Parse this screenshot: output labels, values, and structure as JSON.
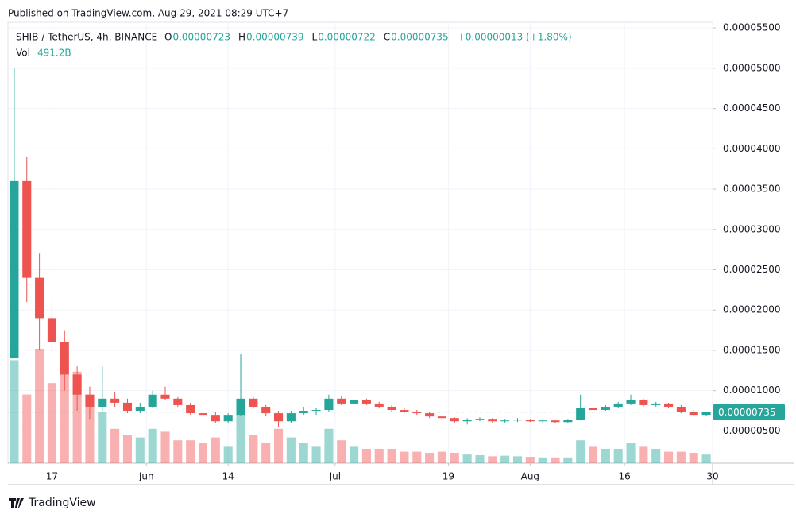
{
  "header": {
    "published": "Published on TradingView.com, Aug 29, 2021 08:29 UTC+7",
    "symbol": "SHIB / TetherUS, 4h, BINANCE",
    "ohlc": [
      {
        "key": "O",
        "value": "0.00000723"
      },
      {
        "key": "H",
        "value": "0.00000739"
      },
      {
        "key": "L",
        "value": "0.00000722"
      },
      {
        "key": "C",
        "value": "0.00000735"
      },
      {
        "key": "",
        "value": "+0.00000013 (+1.80%)"
      }
    ],
    "vol_key": "Vol",
    "vol_value": "491.2B"
  },
  "footer": {
    "brand": "TradingView"
  },
  "chart_data": {
    "type": "candlestick",
    "x": [
      "2021-05-10",
      "2021-05-12",
      "2021-05-14",
      "2021-05-16",
      "2021-05-18",
      "2021-05-20",
      "2021-05-22",
      "2021-05-24",
      "2021-05-26",
      "2021-05-28",
      "2021-05-30",
      "2021-06-01",
      "2021-06-03",
      "2021-06-05",
      "2021-06-07",
      "2021-06-09",
      "2021-06-11",
      "2021-06-13",
      "2021-06-15",
      "2021-06-17",
      "2021-06-19",
      "2021-06-21",
      "2021-06-23",
      "2021-06-25",
      "2021-06-27",
      "2021-06-29",
      "2021-07-01",
      "2021-07-03",
      "2021-07-05",
      "2021-07-07",
      "2021-07-09",
      "2021-07-11",
      "2021-07-13",
      "2021-07-15",
      "2021-07-17",
      "2021-07-19",
      "2021-07-21",
      "2021-07-23",
      "2021-07-25",
      "2021-07-27",
      "2021-07-29",
      "2021-07-31",
      "2021-08-02",
      "2021-08-04",
      "2021-08-06",
      "2021-08-08",
      "2021-08-10",
      "2021-08-12",
      "2021-08-14",
      "2021-08-16",
      "2021-08-18",
      "2021-08-20",
      "2021-08-22",
      "2021-08-24",
      "2021-08-26",
      "2021-08-28"
    ],
    "open": [
      1.4e-05,
      3.6e-05,
      2.4e-05,
      1.9e-05,
      1.6e-05,
      1.2e-05,
      9.5e-06,
      8e-06,
      9e-06,
      8.5e-06,
      7.5e-06,
      8e-06,
      9.5e-06,
      9e-06,
      8.2e-06,
      7.2e-06,
      7e-06,
      6.2e-06,
      7e-06,
      9e-06,
      8e-06,
      7.2e-06,
      6.2e-06,
      7.2e-06,
      7.5e-06,
      7.6e-06,
      9e-06,
      8.4e-06,
      8.8e-06,
      8.4e-06,
      8e-06,
      7.6e-06,
      7.4e-06,
      7.2e-06,
      6.8e-06,
      6.6e-06,
      6.2e-06,
      6.4e-06,
      6.5e-06,
      6.2e-06,
      6.3e-06,
      6.4e-06,
      6.2e-06,
      6.3e-06,
      6.1e-06,
      6.4e-06,
      7.8e-06,
      7.6e-06,
      8e-06,
      8.4e-06,
      8.8e-06,
      8.2e-06,
      8.4e-06,
      8e-06,
      7.4e-06,
      7e-06
    ],
    "high": [
      5e-05,
      3.9e-05,
      2.7e-05,
      2.1e-05,
      1.75e-05,
      1.3e-05,
      1.05e-05,
      1.3e-05,
      9.8e-06,
      9e-06,
      8.5e-06,
      1e-05,
      1.05e-05,
      9.2e-06,
      8.5e-06,
      7.8e-06,
      7.4e-06,
      7.2e-06,
      1.45e-05,
      9.2e-06,
      8.2e-06,
      7.5e-06,
      7.5e-06,
      8e-06,
      7.8e-06,
      9.5e-06,
      9.3e-06,
      9e-06,
      9e-06,
      8.6e-06,
      8.2e-06,
      7.8e-06,
      7.6e-06,
      7.3e-06,
      7e-06,
      6.7e-06,
      6.6e-06,
      6.7e-06,
      6.6e-06,
      6.5e-06,
      6.6e-06,
      6.5e-06,
      6.4e-06,
      6.4e-06,
      6.5e-06,
      9.5e-06,
      8.2e-06,
      8.2e-06,
      8.6e-06,
      9.5e-06,
      9e-06,
      8.6e-06,
      8.5e-06,
      8.2e-06,
      7.6e-06,
      7.4e-06
    ],
    "low": [
      1.4e-05,
      2.1e-05,
      1.5e-05,
      1.5e-05,
      1e-05,
      7.5e-06,
      6.5e-06,
      7.5e-06,
      8e-06,
      7.2e-06,
      7.2e-06,
      7.8e-06,
      8.8e-06,
      8e-06,
      7e-06,
      6.5e-06,
      6e-06,
      6e-06,
      6.8e-06,
      7.8e-06,
      6.8e-06,
      5.5e-06,
      6e-06,
      7e-06,
      7e-06,
      7.4e-06,
      8.2e-06,
      8.2e-06,
      8.2e-06,
      7.8e-06,
      7.4e-06,
      7.2e-06,
      7e-06,
      6.6e-06,
      6.4e-06,
      6e-06,
      5.8e-06,
      6.2e-06,
      6e-06,
      6e-06,
      6.1e-06,
      6.1e-06,
      6e-06,
      6e-06,
      6e-06,
      6.3e-06,
      7.4e-06,
      7.5e-06,
      7.8e-06,
      8.2e-06,
      8e-06,
      8e-06,
      7.8e-06,
      7.2e-06,
      6.8e-06,
      6.9e-06
    ],
    "close": [
      3.6e-05,
      2.4e-05,
      1.9e-05,
      1.6e-05,
      1.2e-05,
      9.5e-06,
      8e-06,
      9e-06,
      8.5e-06,
      7.5e-06,
      8e-06,
      9.5e-06,
      9e-06,
      8.2e-06,
      7.2e-06,
      7e-06,
      6.2e-06,
      7e-06,
      9e-06,
      8e-06,
      7.2e-06,
      6.2e-06,
      7.2e-06,
      7.5e-06,
      7.6e-06,
      9e-06,
      8.4e-06,
      8.8e-06,
      8.4e-06,
      8e-06,
      7.6e-06,
      7.4e-06,
      7.2e-06,
      6.8e-06,
      6.6e-06,
      6.2e-06,
      6.4e-06,
      6.5e-06,
      6.2e-06,
      6.3e-06,
      6.4e-06,
      6.2e-06,
      6.3e-06,
      6.1e-06,
      6.4e-06,
      7.8e-06,
      7.6e-06,
      8e-06,
      8.4e-06,
      8.8e-06,
      8.2e-06,
      8.4e-06,
      8e-06,
      7.4e-06,
      7e-06,
      7.35e-06
    ],
    "volume": [
      18000,
      12000,
      20000,
      14000,
      19000,
      16000,
      12000,
      9000,
      6000,
      5000,
      4500,
      6000,
      5500,
      4000,
      4000,
      3500,
      4500,
      3000,
      9000,
      5000,
      3500,
      6000,
      4500,
      3500,
      3000,
      6000,
      4000,
      3000,
      2500,
      2500,
      2500,
      2000,
      2000,
      1800,
      2000,
      1800,
      1500,
      1400,
      1200,
      1300,
      1200,
      1100,
      1000,
      1000,
      1000,
      4000,
      3000,
      2500,
      2500,
      3500,
      3000,
      2500,
      2000,
      2000,
      1800,
      1500
    ],
    "up_color": "#26a69a",
    "down_color": "#ef5350",
    "xlim": [
      "2021-05-10",
      "2021-08-30"
    ],
    "xticks": [
      {
        "value": "2021-05-17",
        "label": "17"
      },
      {
        "value": "2021-06-01",
        "label": "Jun"
      },
      {
        "value": "2021-06-14",
        "label": "14"
      },
      {
        "value": "2021-07-01",
        "label": "Jul"
      },
      {
        "value": "2021-07-19",
        "label": "19"
      },
      {
        "value": "2021-08-01",
        "label": "Aug"
      },
      {
        "value": "2021-08-16",
        "label": "16"
      },
      {
        "value": "2021-08-30",
        "label": "30"
      }
    ],
    "ylim": [
      1e-06,
      5.57e-05
    ],
    "yticks": [
      {
        "value": 5.5e-05,
        "label": "0.00005500"
      },
      {
        "value": 5e-05,
        "label": "0.00005000"
      },
      {
        "value": 4.5e-05,
        "label": "0.00004500"
      },
      {
        "value": 4e-05,
        "label": "0.00004000"
      },
      {
        "value": 3.5e-05,
        "label": "0.00003500"
      },
      {
        "value": 3e-05,
        "label": "0.00003000"
      },
      {
        "value": 2.5e-05,
        "label": "0.00002500"
      },
      {
        "value": 2e-05,
        "label": "0.00002000"
      },
      {
        "value": 1.5e-05,
        "label": "0.00001500"
      },
      {
        "value": 1e-05,
        "label": "0.00001000"
      },
      {
        "value": 5e-06,
        "label": "0.00000500"
      }
    ],
    "volume_lim": [
      0,
      25000
    ],
    "last_price": {
      "value": 7.35e-06,
      "label": "0.00000735"
    },
    "grid": true
  }
}
